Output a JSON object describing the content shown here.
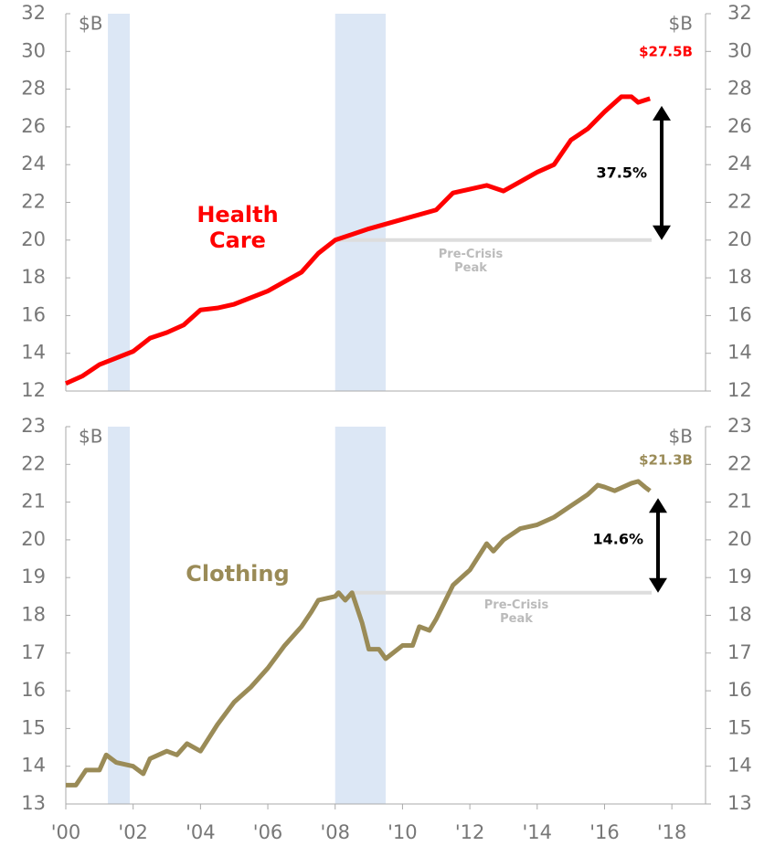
{
  "chart_data": [
    {
      "type": "line",
      "unit": "$B",
      "end_label": "$27.5B",
      "change_label": "37.5%",
      "peak": {
        "label": "Pre-Crisis Peak",
        "value": 20.0,
        "x": [
          2008.0,
          2017.4
        ]
      },
      "recessions": [
        {
          "start": 2001.25,
          "end": 2001.9
        },
        {
          "start": 2008.0,
          "end": 2009.5
        }
      ],
      "xlim": [
        2000,
        2019
      ],
      "ylim": [
        12,
        32
      ],
      "yticks": [
        12,
        14,
        16,
        18,
        20,
        22,
        24,
        26,
        28,
        30,
        32
      ],
      "series": [
        {
          "name": "Health Care",
          "color": "#ff0000",
          "x": [
            2000,
            2000.5,
            2001,
            2002,
            2002.5,
            2003,
            2003.5,
            2004,
            2004.5,
            2005,
            2006,
            2007,
            2007.5,
            2008,
            2009,
            2010,
            2011,
            2011.5,
            2012,
            2012.5,
            2013,
            2013.5,
            2014,
            2014.5,
            2015,
            2015.5,
            2016,
            2016.5,
            2016.8,
            2017,
            2017.35
          ],
          "values": [
            12.4,
            12.8,
            13.4,
            14.1,
            14.8,
            15.1,
            15.5,
            16.3,
            16.4,
            16.6,
            17.3,
            18.3,
            19.3,
            20.0,
            20.6,
            21.1,
            21.6,
            22.5,
            22.7,
            22.9,
            22.6,
            23.1,
            23.6,
            24.0,
            25.3,
            25.9,
            26.8,
            27.6,
            27.6,
            27.3,
            27.5
          ]
        }
      ]
    },
    {
      "type": "line",
      "unit": "$B",
      "end_label": "$21.3B",
      "change_label": "14.6%",
      "peak": {
        "label": "Pre-Crisis Peak",
        "value": 18.6,
        "x": [
          2008.5,
          2017.4
        ]
      },
      "recessions": [
        {
          "start": 2001.25,
          "end": 2001.9
        },
        {
          "start": 2008.0,
          "end": 2009.5
        }
      ],
      "xlim": [
        2000,
        2019
      ],
      "ylim": [
        13,
        23
      ],
      "yticks": [
        13,
        14,
        15,
        16,
        17,
        18,
        19,
        20,
        21,
        22,
        23
      ],
      "xticks": [
        {
          "value": 2000,
          "label": "'00"
        },
        {
          "value": 2002,
          "label": "'02"
        },
        {
          "value": 2004,
          "label": "'04"
        },
        {
          "value": 2006,
          "label": "'06"
        },
        {
          "value": 2008,
          "label": "'08"
        },
        {
          "value": 2010,
          "label": "'10"
        },
        {
          "value": 2012,
          "label": "'12"
        },
        {
          "value": 2014,
          "label": "'14"
        },
        {
          "value": 2016,
          "label": "'16"
        },
        {
          "value": 2018,
          "label": "'18"
        }
      ],
      "series": [
        {
          "name": "Clothing",
          "color": "#9a8b57",
          "x": [
            2000,
            2000.3,
            2000.6,
            2001,
            2001.2,
            2001.5,
            2002,
            2002.3,
            2002.5,
            2003,
            2003.3,
            2003.6,
            2004,
            2004.5,
            2005,
            2005.5,
            2006,
            2006.5,
            2007,
            2007.3,
            2007.5,
            2008,
            2008.1,
            2008.3,
            2008.5,
            2008.8,
            2009,
            2009.3,
            2009.5,
            2010,
            2010.3,
            2010.5,
            2010.8,
            2011,
            2011.5,
            2012,
            2012.5,
            2012.7,
            2013,
            2013.5,
            2014,
            2014.5,
            2015,
            2015.5,
            2015.8,
            2016,
            2016.3,
            2016.8,
            2017,
            2017.2,
            2017.35
          ],
          "values": [
            13.5,
            13.5,
            13.9,
            13.9,
            14.3,
            14.1,
            14.0,
            13.8,
            14.2,
            14.4,
            14.3,
            14.6,
            14.4,
            15.1,
            15.7,
            16.1,
            16.6,
            17.2,
            17.7,
            18.1,
            18.4,
            18.5,
            18.6,
            18.4,
            18.6,
            17.8,
            17.1,
            17.1,
            16.85,
            17.2,
            17.2,
            17.7,
            17.6,
            17.9,
            18.8,
            19.2,
            19.9,
            19.7,
            20.0,
            20.3,
            20.4,
            20.6,
            20.9,
            21.2,
            21.45,
            21.4,
            21.3,
            21.5,
            21.55,
            21.4,
            21.3
          ]
        }
      ]
    }
  ]
}
